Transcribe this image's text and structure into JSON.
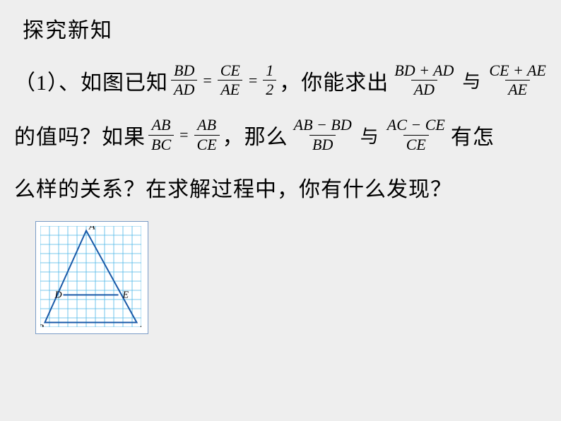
{
  "title": "探究新知",
  "line1": {
    "prefix": "（1）、如图已知",
    "frac1_num": "BD",
    "frac1_den": "AD",
    "eq1": "=",
    "frac2_num": "CE",
    "frac2_den": "AE",
    "eq2": "=",
    "frac3_num": "1",
    "frac3_den": "2",
    "mid": "，你能求出",
    "frac4_num": "BD + AD",
    "frac4_den": "AD",
    "conj": "与",
    "frac5_num": "CE + AE",
    "frac5_den": "AE"
  },
  "line2": {
    "prefix": "的值吗？如果",
    "frac1_num": "AB",
    "frac1_den": "BC",
    "eq": "=",
    "frac2_num": "AB",
    "frac2_den": "CE",
    "mid": "，那么",
    "frac3_num": "AB − BD",
    "frac3_den": "BD",
    "conj": "与",
    "frac4_num": "AC − CE",
    "frac4_den": "CE",
    "suffix": "有怎"
  },
  "line3": "么样的关系？在求解过程中，你有什么发现？",
  "figure": {
    "grid_cells": 11,
    "cell_size": 13,
    "grid_color": "#4fb8e8",
    "line_color": "#1a5aa8",
    "line_width": 2,
    "points": {
      "A": {
        "x": 5,
        "y": 0.5,
        "label": "A"
      },
      "B": {
        "x": 0.5,
        "y": 10.5,
        "label": "B"
      },
      "C": {
        "x": 10.5,
        "y": 10.5,
        "label": "C"
      },
      "D": {
        "x": 2.5,
        "y": 7.5,
        "label": "D"
      },
      "E": {
        "x": 8.5,
        "y": 7.5,
        "label": "E"
      }
    },
    "label_font": "italic 14px Times New Roman",
    "label_color": "#000"
  }
}
